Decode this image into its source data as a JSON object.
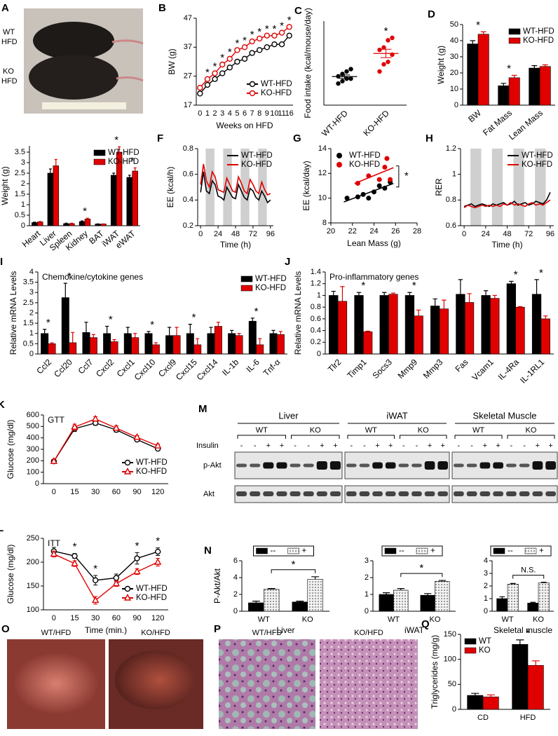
{
  "chart_data": [
    {
      "type": "line",
      "panel": "B",
      "ylabel": "BW (g)",
      "xlabel": "Weeks on HFD",
      "categories": [
        "0",
        "1",
        "2",
        "3",
        "4",
        "5",
        "6",
        "7",
        "8",
        "9",
        "10",
        "11",
        "16"
      ],
      "ylim": [
        17,
        47
      ],
      "yticks": [
        17,
        27,
        37,
        47
      ],
      "legend": "lower right",
      "series": [
        {
          "name": "WT-HFD",
          "color": "#000000",
          "marker": "circle",
          "values": [
            21,
            24,
            26,
            28,
            30,
            32,
            33,
            35,
            36,
            37,
            38,
            38,
            41
          ]
        },
        {
          "name": "KO-HFD",
          "color": "#e00000",
          "marker": "circle",
          "values": [
            23,
            26,
            28,
            31,
            33,
            36,
            37,
            39,
            40,
            41,
            41,
            42,
            44
          ]
        }
      ],
      "significance": [
        null,
        "*",
        "*",
        "*",
        "*",
        "*",
        "*",
        "*",
        "*",
        "*",
        "*",
        "*",
        "*"
      ]
    },
    {
      "type": "strip",
      "panel": "C",
      "ylabel": "Food intake (kcal/mouse/day)",
      "categories": [
        "WT-HFD",
        "KO-HFD"
      ],
      "colors": [
        "#000000",
        "#e00000"
      ],
      "values": [
        [
          14,
          15,
          16,
          16,
          17,
          18,
          19,
          20
        ],
        [
          19,
          22,
          23,
          26,
          28,
          29,
          32,
          33
        ]
      ],
      "ylim": [
        5,
        40
      ],
      "yticks": [],
      "significance": [
        null,
        "*"
      ]
    },
    {
      "type": "bar",
      "panel": "D",
      "ylabel": "Weight (g)",
      "categories": [
        "BW",
        "Fat Mass",
        "Lean Mass"
      ],
      "ylim": [
        0,
        50
      ],
      "yticks": [
        0,
        10,
        20,
        30,
        40,
        50
      ],
      "legend": "upper right",
      "series": [
        {
          "name": "WT-HFD",
          "color": "#000000",
          "values": [
            38,
            12,
            23
          ],
          "errors": [
            2,
            1.5,
            1.5
          ]
        },
        {
          "name": "KO-HFD",
          "color": "#e00000",
          "values": [
            44,
            17,
            24
          ],
          "errors": [
            1.5,
            1.5,
            1
          ]
        }
      ],
      "significance": [
        "*",
        "*",
        null
      ]
    },
    {
      "type": "bar",
      "panel": "E",
      "ylabel": "Weight (g)",
      "categories": [
        "Heart",
        "Liver",
        "Spleen",
        "Kidney",
        "BAT",
        "iWAT",
        "eWAT"
      ],
      "ylim": [
        0,
        3.8
      ],
      "yticks": [
        0,
        0.5,
        1,
        1.5,
        2,
        2.5,
        3,
        3.5
      ],
      "legend": "upper right",
      "series": [
        {
          "name": "WT-HFD",
          "color": "#000000",
          "values": [
            0.15,
            2.5,
            0.1,
            0.2,
            0.08,
            2.4,
            2.3
          ],
          "errors": [
            0.02,
            0.2,
            0.02,
            0.03,
            0.01,
            0.1,
            0.1
          ]
        },
        {
          "name": "KO-HFD",
          "color": "#e00000",
          "values": [
            0.18,
            2.85,
            0.1,
            0.32,
            0.08,
            3.5,
            2.6
          ],
          "errors": [
            0.02,
            0.3,
            0.02,
            0.04,
            0.01,
            0.25,
            0.15
          ]
        }
      ],
      "significance": [
        null,
        null,
        null,
        "*",
        null,
        "*",
        "*"
      ]
    },
    {
      "type": "line",
      "panel": "F",
      "ylabel": "EE (kcal/h)",
      "xlabel": "Time (h)",
      "x": [
        0,
        4,
        8,
        12,
        16,
        20,
        24,
        28,
        32,
        36,
        40,
        44,
        48,
        52,
        56,
        60,
        64,
        68,
        72,
        76,
        80,
        84,
        88,
        92,
        96
      ],
      "xlim": [
        -4,
        100
      ],
      "xticks": [
        0,
        24,
        48,
        72,
        96
      ],
      "ylim": [
        0.2,
        0.8
      ],
      "yticks": [
        0.2,
        0.4,
        0.6,
        0.8
      ],
      "shaded": [
        [
          7,
          19
        ],
        [
          31,
          43
        ],
        [
          55,
          67
        ],
        [
          79,
          91
        ]
      ],
      "legend": "upper right",
      "series": [
        {
          "name": "WT-HFD",
          "color": "#000000",
          "values": [
            0.46,
            0.62,
            0.47,
            0.45,
            0.55,
            0.52,
            0.43,
            0.42,
            0.4,
            0.5,
            0.46,
            0.42,
            0.41,
            0.52,
            0.47,
            0.42,
            0.4,
            0.49,
            0.47,
            0.42,
            0.4,
            0.47,
            0.43,
            0.38,
            0.4
          ]
        },
        {
          "name": "KO-HFD",
          "color": "#e00000",
          "values": [
            0.52,
            0.68,
            0.55,
            0.5,
            0.62,
            0.58,
            0.48,
            0.47,
            0.46,
            0.57,
            0.52,
            0.47,
            0.46,
            0.58,
            0.53,
            0.47,
            0.45,
            0.56,
            0.52,
            0.47,
            0.45,
            0.54,
            0.48,
            0.44,
            0.45
          ]
        }
      ]
    },
    {
      "type": "scatter",
      "panel": "G",
      "ylabel": "EE (kcal/day)",
      "xlabel": "Lean Mass (g)",
      "xlim": [
        20,
        28
      ],
      "xticks": [
        20,
        22,
        24,
        26,
        28
      ],
      "ylim": [
        8,
        14
      ],
      "yticks": [
        8,
        10,
        12,
        14
      ],
      "legend": "upper left",
      "annotation": "*",
      "series": [
        {
          "name": "WT-HFD",
          "color": "#000000",
          "x": [
            21.5,
            22.5,
            23,
            23.5,
            24,
            24.5,
            25,
            25.5
          ],
          "values": [
            10,
            10.1,
            10.3,
            10,
            10.5,
            11,
            10.8,
            11.3
          ]
        },
        {
          "name": "KO-HFD",
          "color": "#e00000",
          "x": [
            22.5,
            23.5,
            24.5,
            25,
            25.2,
            25.5
          ],
          "values": [
            11.2,
            11.8,
            11.5,
            12.5,
            13.2,
            11.5
          ]
        }
      ]
    },
    {
      "type": "line",
      "panel": "H",
      "ylabel": "RER",
      "xlabel": "Time (h)",
      "x": [
        0,
        4,
        8,
        12,
        16,
        20,
        24,
        28,
        32,
        36,
        40,
        44,
        48,
        52,
        56,
        60,
        64,
        68,
        72,
        76,
        80,
        84,
        88,
        92,
        96
      ],
      "xlim": [
        -4,
        100
      ],
      "xticks": [
        0,
        24,
        48,
        72,
        96
      ],
      "ylim": [
        0.6,
        1.2
      ],
      "yticks": [
        0.6,
        0.8,
        1,
        1.2
      ],
      "shaded": [
        [
          7,
          19
        ],
        [
          31,
          43
        ],
        [
          55,
          67
        ],
        [
          79,
          91
        ]
      ],
      "legend": "upper right",
      "series": [
        {
          "name": "WT-HFD",
          "color": "#000000",
          "values": [
            0.75,
            0.76,
            0.77,
            0.75,
            0.76,
            0.77,
            0.76,
            0.75,
            0.77,
            0.76,
            0.77,
            0.78,
            0.76,
            0.77,
            0.79,
            0.76,
            0.77,
            0.78,
            0.76,
            0.77,
            0.79,
            0.78,
            0.77,
            0.8,
            0.86
          ]
        },
        {
          "name": "KO-HFD",
          "color": "#e00000",
          "values": [
            0.74,
            0.76,
            0.75,
            0.74,
            0.75,
            0.76,
            0.75,
            0.76,
            0.75,
            0.76,
            0.75,
            0.77,
            0.76,
            0.78,
            0.76,
            0.77,
            0.76,
            0.75,
            0.77,
            0.78,
            0.76,
            0.77,
            0.76,
            0.78,
            0.8
          ]
        }
      ]
    },
    {
      "type": "bar",
      "panel": "I",
      "ylabel": "Relative mRNA Levels",
      "subtitle": "Chemokine/cytokine genes",
      "categories": [
        "Ccl2",
        "Ccl20",
        "Ccl7",
        "Cxcl2",
        "Cxcl1",
        "Cxcl10",
        "Cxcl9",
        "Cxcl15",
        "Cxcl14",
        "IL-1b",
        "IL-6",
        "Tnf-α"
      ],
      "ylim": [
        0,
        4
      ],
      "yticks": [
        0,
        0.5,
        1,
        1.5,
        2,
        2.5,
        3,
        3.5,
        4
      ],
      "legend": "upper right",
      "series": [
        {
          "name": "WT-HFD",
          "color": "#000000",
          "values": [
            1,
            2.75,
            1.05,
            1,
            1,
            1,
            0.9,
            1,
            1,
            1,
            1.6,
            1
          ],
          "errors": [
            0.2,
            0.7,
            0.5,
            0.35,
            0.3,
            0.1,
            0.4,
            0.45,
            0.3,
            0.15,
            0.15,
            0.15
          ]
        },
        {
          "name": "KO-HFD",
          "color": "#e00000",
          "values": [
            0.5,
            0.55,
            0.8,
            0.6,
            0.8,
            0.45,
            0.9,
            0.45,
            1.35,
            0.9,
            0.45,
            0.95
          ],
          "errors": [
            0.05,
            0.5,
            0.15,
            0.1,
            0.2,
            0.1,
            0.4,
            0.3,
            0.2,
            0.1,
            0.3,
            0.15
          ]
        }
      ],
      "significance": [
        "*",
        "*",
        null,
        "*",
        null,
        "*",
        null,
        "*",
        null,
        null,
        "*",
        null
      ]
    },
    {
      "type": "bar",
      "panel": "J",
      "ylabel": "Relative mRNA Levels",
      "subtitle": "Pro-inflammatory genes",
      "categories": [
        "Tlr2",
        "Timp1",
        "Socs3",
        "Mmp9",
        "Mmp3",
        "Fas",
        "Vcam1",
        "IL-4Ra",
        "IL-1RL1"
      ],
      "ylim": [
        0,
        1.4
      ],
      "yticks": [
        0,
        0.2,
        0.4,
        0.6,
        0.8,
        1,
        1.2,
        1.4
      ],
      "series": [
        {
          "name": "WT-HFD",
          "color": "#000000",
          "values": [
            1,
            1,
            1,
            1,
            0.82,
            1.02,
            1,
            1.2,
            1.02
          ],
          "errors": [
            0.07,
            0.05,
            0.05,
            0.05,
            0.12,
            0.25,
            0.08,
            0.04,
            0.25
          ]
        },
        {
          "name": "KO-HFD",
          "color": "#e00000",
          "values": [
            0.9,
            0.38,
            1.02,
            0.65,
            0.77,
            0.88,
            0.95,
            0.8,
            0.6
          ],
          "errors": [
            0.25,
            0.01,
            0.02,
            0.1,
            0.15,
            0.15,
            0.05,
            0.01,
            0.05
          ]
        }
      ],
      "significance": [
        null,
        "*",
        null,
        "*",
        null,
        null,
        null,
        "*",
        "*"
      ]
    },
    {
      "type": "line",
      "panel": "K",
      "ylabel": "Glucose (mg/dl)",
      "subtitle": "GTT",
      "categories": [
        "0",
        "15",
        "30",
        "60",
        "90",
        "120"
      ],
      "ylim": [
        0,
        600
      ],
      "yticks": [
        0,
        100,
        200,
        300,
        400,
        500,
        600
      ],
      "legend": "lower right",
      "series": [
        {
          "name": "WT-HFD",
          "color": "#000000",
          "marker": "circle",
          "values": [
            195,
            480,
            530,
            470,
            385,
            305
          ],
          "errors": [
            10,
            25,
            20,
            20,
            15,
            15
          ]
        },
        {
          "name": "KO-HFD",
          "color": "#e00000",
          "marker": "triangle",
          "values": [
            195,
            495,
            565,
            485,
            405,
            330
          ],
          "errors": [
            10,
            25,
            20,
            20,
            15,
            15
          ]
        }
      ]
    },
    {
      "type": "line",
      "panel": "L",
      "ylabel": "Glucose (mg/dl)",
      "subtitle": "ITT",
      "xlabel": "Time (min.)",
      "categories": [
        "0",
        "15",
        "30",
        "60",
        "90",
        "120"
      ],
      "ylim": [
        100,
        250
      ],
      "yticks": [
        100,
        150,
        200,
        250
      ],
      "legend": "lower right",
      "series": [
        {
          "name": "WT-HFD",
          "color": "#000000",
          "marker": "circle",
          "values": [
            223,
            213,
            162,
            167,
            208,
            222
          ],
          "errors": [
            8,
            5,
            10,
            8,
            12,
            8
          ]
        },
        {
          "name": "KO-HFD",
          "color": "#e00000",
          "marker": "triangle",
          "values": [
            217,
            197,
            120,
            155,
            180,
            200
          ],
          "errors": [
            6,
            6,
            8,
            6,
            6,
            8
          ]
        }
      ],
      "significance": [
        null,
        "*",
        "*",
        null,
        "*",
        "*"
      ]
    },
    {
      "type": "bar",
      "panel": "N",
      "ylabel": "P-Akt/Akt",
      "xlabel": "Liver",
      "categories": [
        "WT",
        "KO"
      ],
      "ylim": [
        0,
        6
      ],
      "yticks": [
        0,
        2,
        4,
        6
      ],
      "legend": "upper center",
      "comparison": "*",
      "series": [
        {
          "name": "--",
          "color": "#000000",
          "values": [
            1,
            1.1
          ],
          "errors": [
            0.2,
            0.1
          ]
        },
        {
          "name": "+",
          "color": "#e8e8e8",
          "pattern": "dots",
          "values": [
            2.6,
            3.8
          ],
          "errors": [
            0.1,
            0.3
          ]
        }
      ]
    },
    {
      "type": "bar",
      "xlabel": "iWAT",
      "categories": [
        "WT",
        "KO"
      ],
      "ylim": [
        0,
        3
      ],
      "yticks": [
        0,
        1,
        2,
        3
      ],
      "legend": "upper center",
      "comparison": "*",
      "series": [
        {
          "name": "--",
          "color": "#000000",
          "values": [
            1,
            0.95
          ],
          "errors": [
            0.1,
            0.1
          ]
        },
        {
          "name": "+",
          "color": "#e8e8e8",
          "pattern": "dots",
          "values": [
            1.25,
            1.78
          ],
          "errors": [
            0.1,
            0.05
          ]
        }
      ]
    },
    {
      "type": "bar",
      "xlabel": "Skeletal muscle",
      "categories": [
        "WT",
        "KO"
      ],
      "ylim": [
        0,
        4
      ],
      "yticks": [
        0,
        1,
        2,
        3,
        4
      ],
      "legend": "upper center",
      "comparison": "N.S.",
      "series": [
        {
          "name": "--",
          "color": "#000000",
          "values": [
            1,
            0.65
          ],
          "errors": [
            0.15,
            0.06
          ]
        },
        {
          "name": "+",
          "color": "#e8e8e8",
          "pattern": "dots",
          "values": [
            2.15,
            2.25
          ],
          "errors": [
            0.05,
            0.05
          ]
        }
      ]
    },
    {
      "type": "bar",
      "panel": "Q",
      "ylabel": "Triglycerides (mg/g)",
      "categories": [
        "CD",
        "HFD"
      ],
      "ylim": [
        0,
        150
      ],
      "yticks": [
        0,
        50,
        100,
        150
      ],
      "legend": "upper left",
      "series": [
        {
          "name": "WT",
          "color": "#000000",
          "values": [
            28,
            130
          ],
          "errors": [
            4,
            9
          ]
        },
        {
          "name": "KO",
          "color": "#e00000",
          "values": [
            25,
            88
          ],
          "errors": [
            4,
            9
          ]
        }
      ],
      "significance": [
        null,
        "*"
      ]
    }
  ],
  "images": [
    {
      "panel": "A",
      "labels": [
        "WT",
        "HFD",
        "KO",
        "HFD"
      ]
    },
    {
      "panel": "O",
      "labels": [
        "WT/HFD",
        "KO/HFD"
      ]
    },
    {
      "panel": "P",
      "labels": [
        "WT/HFD",
        "KO/HFD"
      ]
    }
  ],
  "blot": {
    "panel": "M",
    "tissues": [
      "Liver",
      "iWAT",
      "Skeletal Muscle"
    ],
    "genotypes": [
      "WT",
      "KO"
    ],
    "treatment": "Insulin",
    "doses": [
      "-",
      "-",
      "+",
      "+"
    ],
    "rows": [
      "p-Akt",
      "Akt"
    ]
  }
}
